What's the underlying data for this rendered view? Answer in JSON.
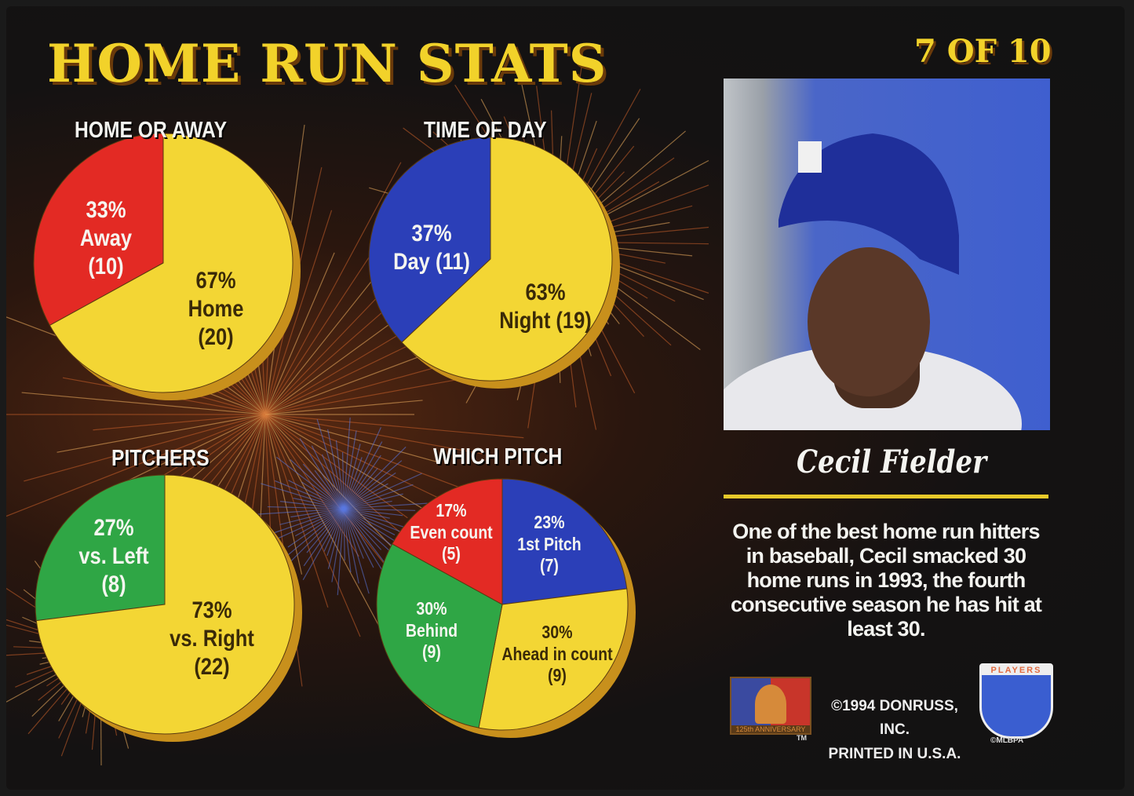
{
  "header": {
    "title": "HOME RUN STATS",
    "card_number": "7 OF 10"
  },
  "chart_data": [
    {
      "type": "pie",
      "title": "HOME OR AWAY",
      "slices": [
        {
          "pct": "33%",
          "label": "Away",
          "count": "(10)",
          "value": 33,
          "color": "#e32a24"
        },
        {
          "pct": "67%",
          "label": "Home",
          "count": "(20)",
          "value": 67,
          "color": "#f3d634"
        }
      ]
    },
    {
      "type": "pie",
      "title": "TIME OF DAY",
      "slices": [
        {
          "pct": "37%",
          "label": "Day (11)",
          "count": "",
          "value": 37,
          "color": "#2b3fb8"
        },
        {
          "pct": "63%",
          "label": "Night (19)",
          "count": "",
          "value": 63,
          "color": "#f3d634"
        }
      ]
    },
    {
      "type": "pie",
      "title": "PITCHERS",
      "slices": [
        {
          "pct": "27%",
          "label": "vs. Left",
          "count": "(8)",
          "value": 27,
          "color": "#2fa645"
        },
        {
          "pct": "73%",
          "label": "vs. Right",
          "count": "(22)",
          "value": 73,
          "color": "#f3d634"
        }
      ]
    },
    {
      "type": "pie",
      "title": "WHICH PITCH",
      "slices": [
        {
          "pct": "23%",
          "label": "1st Pitch",
          "count": "(7)",
          "value": 23,
          "color": "#2b3fb8"
        },
        {
          "pct": "30%",
          "label": "Ahead in count",
          "count": "(9)",
          "value": 30,
          "color": "#f3d634"
        },
        {
          "pct": "30%",
          "label": "Behind",
          "count": "(9)",
          "value": 30,
          "color": "#2fa645"
        },
        {
          "pct": "17%",
          "label": "Even count",
          "count": "(5)",
          "value": 17,
          "color": "#e32a24"
        }
      ]
    }
  ],
  "player": {
    "name": "Cecil Fielder",
    "bio": "One of the best home run hitters in baseball, Cecil smacked 30 home runs in 1993, the fourth consecutive season he has hit at least 30."
  },
  "footer": {
    "copyright": "©1994 DONRUSS, INC.",
    "printed": "PRINTED IN U.S.A.",
    "mlb_logo": "125th ANNIVERSARY",
    "tm": "TM",
    "mlbpa_logo": "PLAYERS",
    "mlbpa": "©MLBPA"
  },
  "colors": {
    "title": "#f2d22a",
    "shadow": "#c8901c"
  }
}
